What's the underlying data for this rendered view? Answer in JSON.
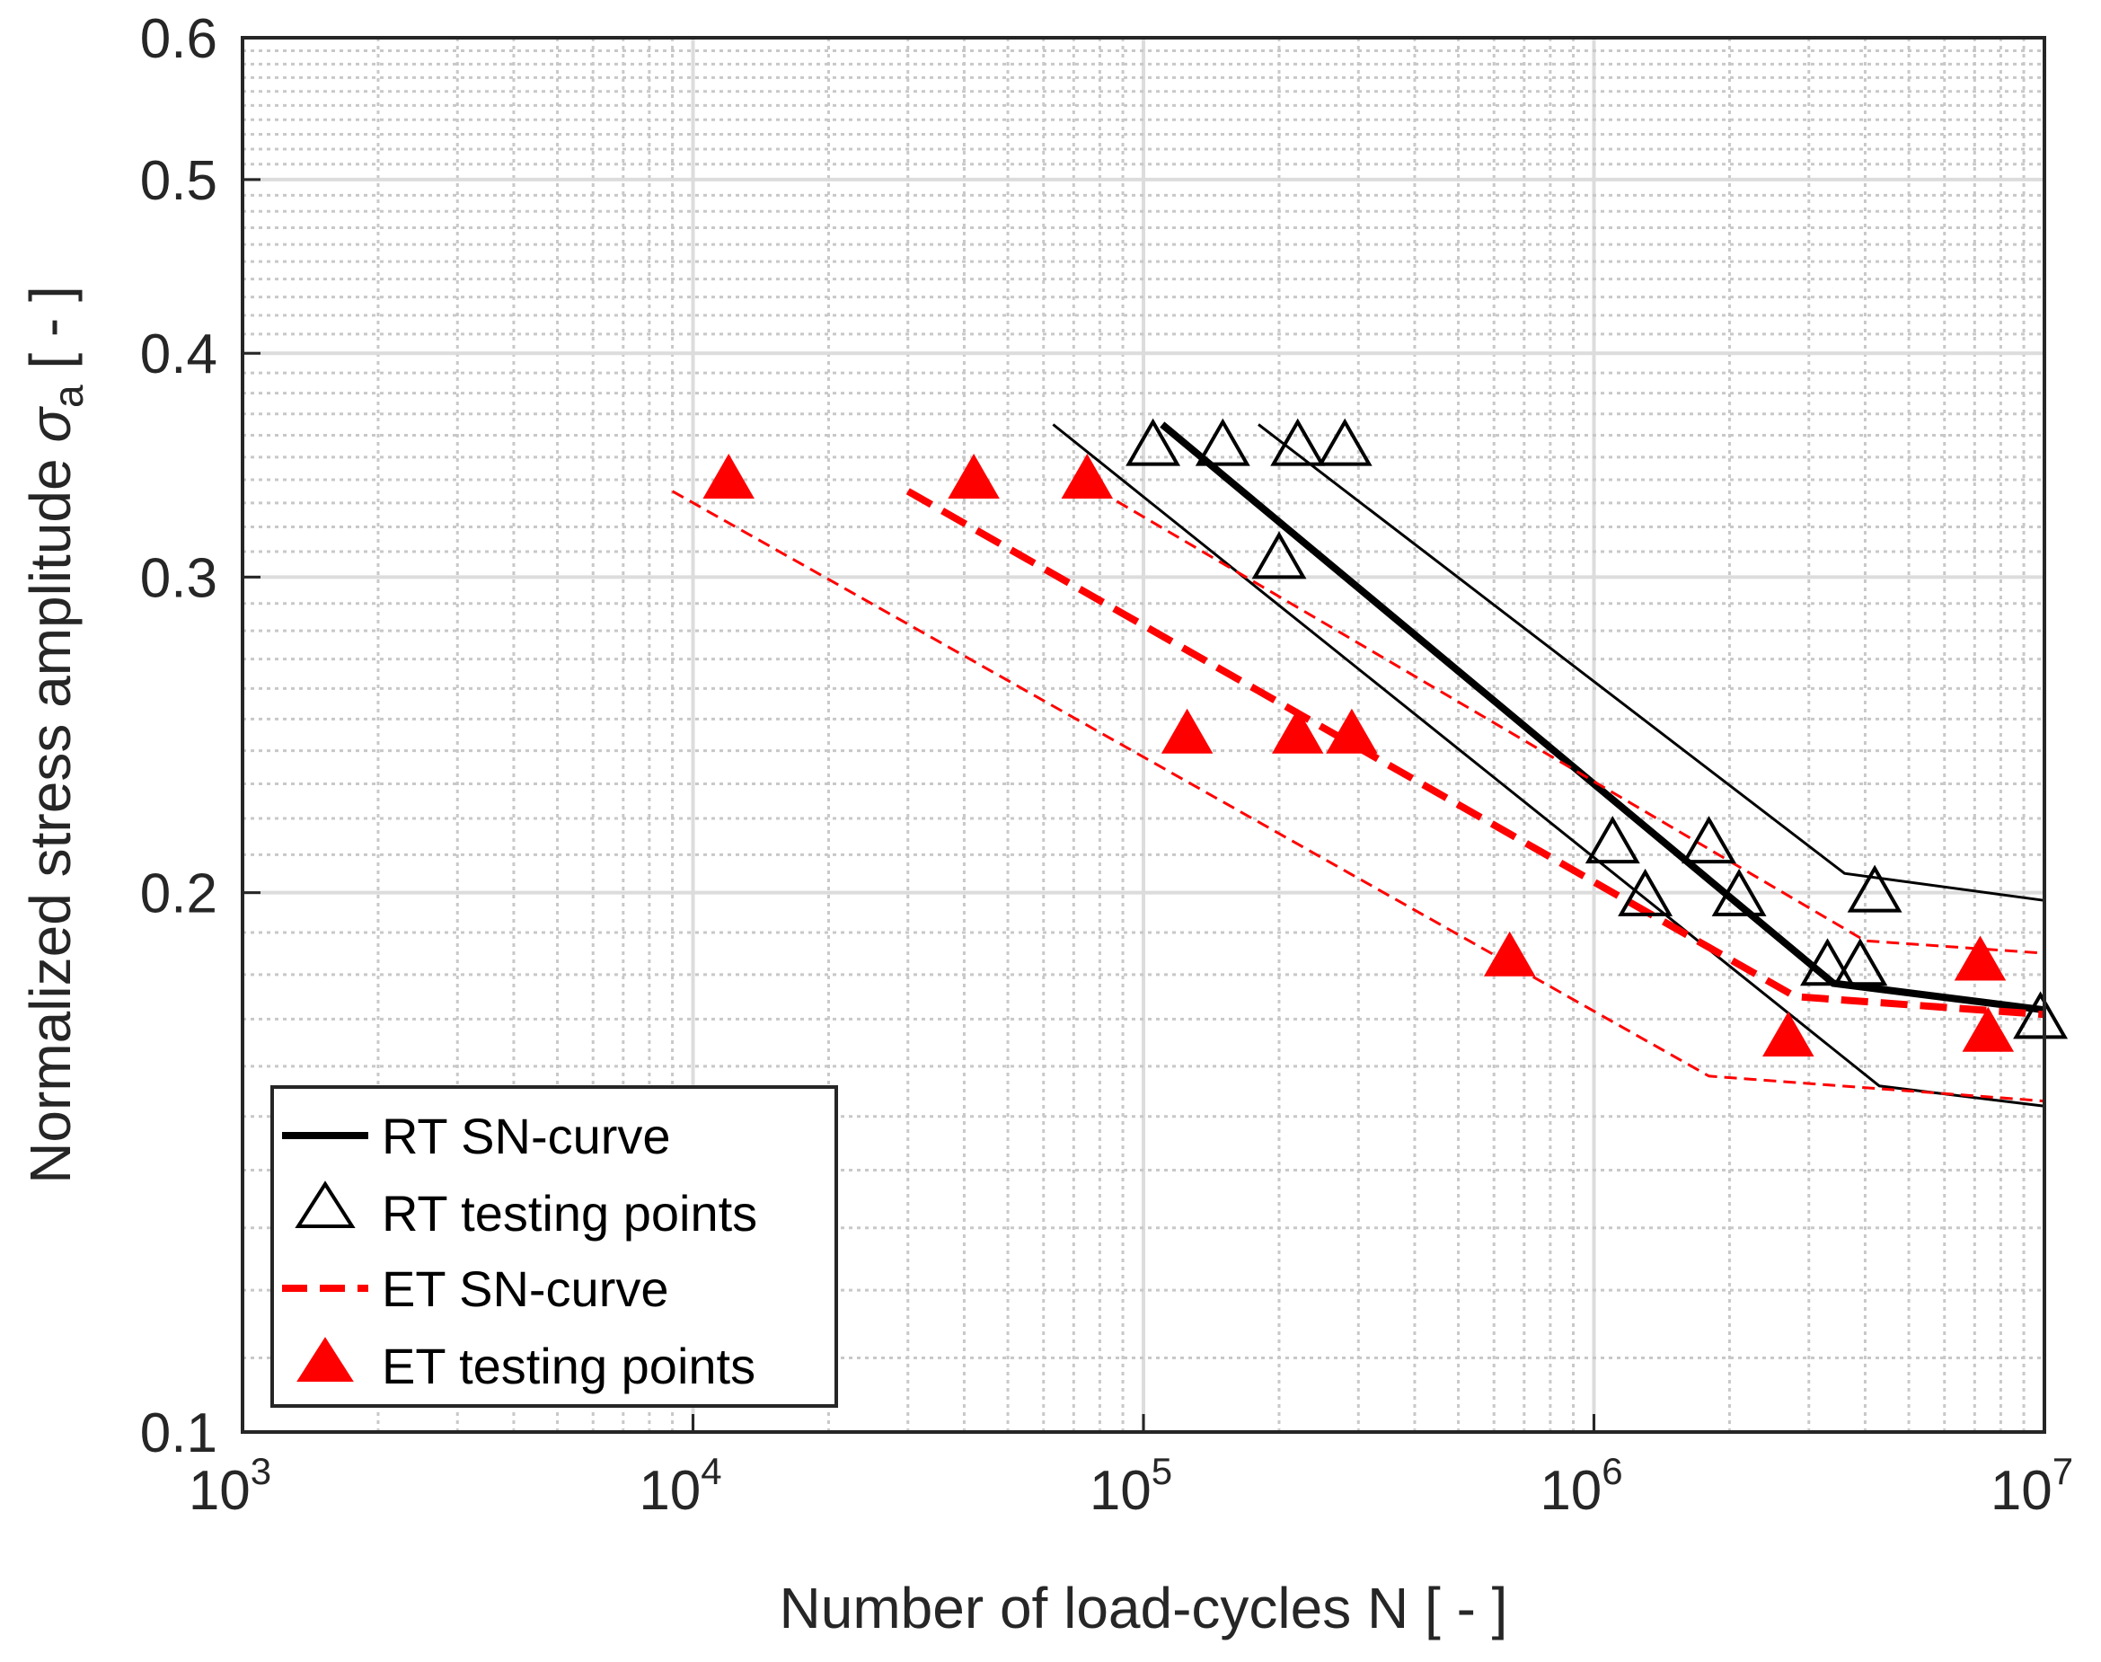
{
  "chart_data": {
    "type": "line",
    "x_scale": "log",
    "y_scale": "log",
    "xlim": [
      1000,
      10000000
    ],
    "ylim": [
      0.1,
      0.6
    ],
    "grid": true,
    "minor_grid": true,
    "legend_position": "bottom-left",
    "xlabel": "Number of load-cycles N [ - ]",
    "ylabel": {
      "main": "Normalized stress amplitude ",
      "symbol": "σ",
      "subscript": "a",
      "unit": " [ - ]"
    },
    "x_ticks": [
      {
        "value": 1000,
        "base": "10",
        "exp": "3"
      },
      {
        "value": 10000,
        "base": "10",
        "exp": "4"
      },
      {
        "value": 100000,
        "base": "10",
        "exp": "5"
      },
      {
        "value": 1000000,
        "base": "10",
        "exp": "6"
      },
      {
        "value": 10000000,
        "base": "10",
        "exp": "7"
      }
    ],
    "y_ticks": [
      {
        "value": 0.1,
        "label": "0.1"
      },
      {
        "value": 0.2,
        "label": "0.2"
      },
      {
        "value": 0.3,
        "label": "0.3"
      },
      {
        "value": 0.4,
        "label": "0.4"
      },
      {
        "value": 0.5,
        "label": "0.5"
      },
      {
        "value": 0.6,
        "label": "0.6"
      }
    ],
    "series": [
      {
        "name": "RT SN-curve",
        "kind": "line",
        "role": "mean",
        "color": "#000000",
        "dash": "solid",
        "points": [
          [
            110000,
            0.365
          ],
          [
            3400000,
            0.178
          ],
          [
            10000000,
            0.172
          ]
        ]
      },
      {
        "name": "RT SN-curve upper band",
        "kind": "line",
        "role": "band",
        "color": "#000000",
        "dash": "solid",
        "points": [
          [
            180000,
            0.365
          ],
          [
            3600000,
            0.205
          ],
          [
            10000000,
            0.198
          ]
        ]
      },
      {
        "name": "RT SN-curve lower band",
        "kind": "line",
        "role": "band",
        "color": "#000000",
        "dash": "solid",
        "points": [
          [
            63000,
            0.365
          ],
          [
            4300000,
            0.156
          ],
          [
            10000000,
            0.152
          ]
        ]
      },
      {
        "name": "RT testing points",
        "kind": "marker",
        "marker": "triangle-open",
        "color": "#000000",
        "points": [
          [
            105000,
            0.355
          ],
          [
            150000,
            0.355
          ],
          [
            220000,
            0.355
          ],
          [
            280000,
            0.355
          ],
          [
            200000,
            0.307
          ],
          [
            1100000,
            0.213
          ],
          [
            1300000,
            0.199
          ],
          [
            1800000,
            0.213
          ],
          [
            2100000,
            0.199
          ],
          [
            3300000,
            0.182
          ],
          [
            3900000,
            0.182
          ],
          [
            4200000,
            0.2
          ],
          [
            9800000,
            0.17
          ]
        ]
      },
      {
        "name": "ET SN-curve",
        "kind": "line",
        "role": "mean",
        "color": "#ff0000",
        "dash": "dashed",
        "points": [
          [
            30000,
            0.335
          ],
          [
            2800000,
            0.175
          ],
          [
            10000000,
            0.171
          ]
        ]
      },
      {
        "name": "ET SN-curve upper band",
        "kind": "line",
        "role": "band",
        "color": "#ff0000",
        "dash": "dashed",
        "points": [
          [
            80000,
            0.335
          ],
          [
            4000000,
            0.188
          ],
          [
            10000000,
            0.185
          ]
        ]
      },
      {
        "name": "ET SN-curve lower band",
        "kind": "line",
        "role": "band",
        "color": "#ff0000",
        "dash": "dashed",
        "points": [
          [
            9000,
            0.335
          ],
          [
            1800000,
            0.158
          ],
          [
            10000000,
            0.153
          ]
        ]
      },
      {
        "name": "ET testing points",
        "kind": "marker",
        "marker": "triangle-filled",
        "color": "#ff0000",
        "points": [
          [
            12000,
            0.34
          ],
          [
            42000,
            0.34
          ],
          [
            75000,
            0.34
          ],
          [
            125000,
            0.245
          ],
          [
            220000,
            0.245
          ],
          [
            290000,
            0.245
          ],
          [
            650000,
            0.184
          ],
          [
            2700000,
            0.166
          ],
          [
            7200000,
            0.183
          ],
          [
            7500000,
            0.167
          ]
        ]
      }
    ],
    "legend": [
      {
        "label": "RT SN-curve",
        "symbol": "line-solid",
        "color": "#000000"
      },
      {
        "label": "RT testing points",
        "symbol": "triangle-open",
        "color": "#000000"
      },
      {
        "label": "ET SN-curve",
        "symbol": "line-dashed",
        "color": "#ff0000"
      },
      {
        "label": "ET testing points",
        "symbol": "triangle-filled",
        "color": "#ff0000"
      }
    ]
  }
}
